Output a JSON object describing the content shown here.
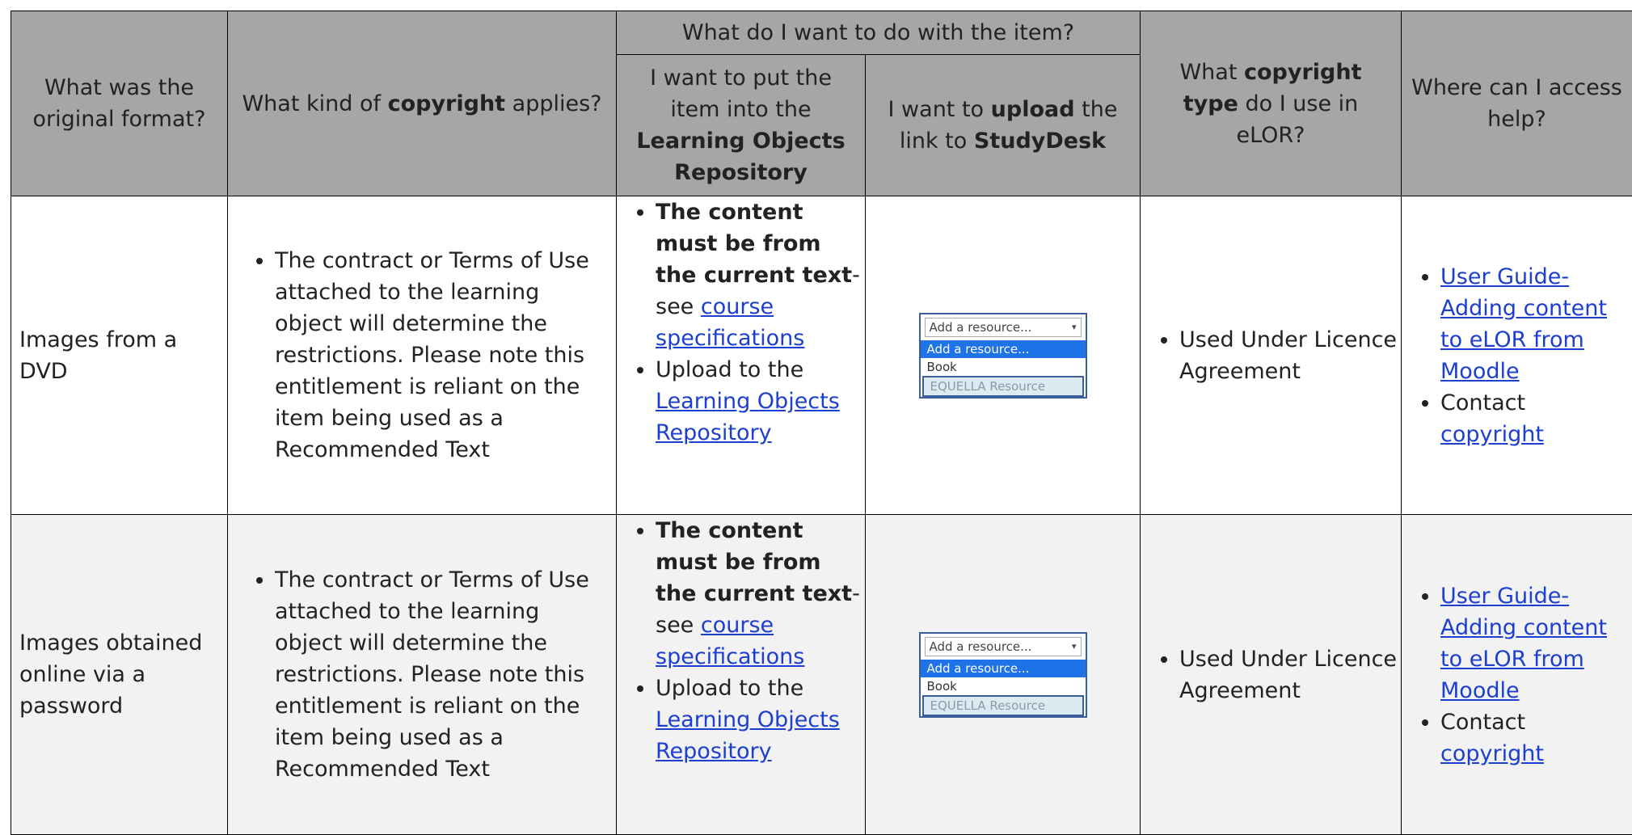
{
  "header": {
    "format": "What was the original format?",
    "copyright": [
      "What kind of ",
      "copyright",
      " applies?"
    ],
    "action": "What do I want to do with the item?",
    "repository": [
      "I want to put the item into the ",
      "Learning Objects Repository"
    ],
    "upload": [
      "I want to ",
      "upload",
      " the link to ",
      "StudyDesk"
    ],
    "type": [
      "What ",
      "copyright type",
      " do I use in eLOR?"
    ],
    "help": "Where can I access help?"
  },
  "rows": [
    {
      "format": "Images from a DVD",
      "copyright": "The contract or Terms of Use attached to the learning object will determine the restrictions. Please note this entitlement is reliant on the item being used as a Recommended Text",
      "repository": [
        [
          "The content must be from the current text",
          "- see ",
          "course specifications"
        ],
        [
          "Upload to the ",
          "Learning Objects Repository"
        ]
      ],
      "dropdown": {
        "select": "Add a resource...",
        "options": [
          "Add a resource...",
          "Book",
          "EQUELLA Resource"
        ]
      },
      "type": "Used Under Licence Agreement",
      "help": [
        [
          "User Guide- Adding content to eLOR from Moodle"
        ],
        [
          "Contact ",
          "copyright"
        ]
      ]
    },
    {
      "format": "Images obtained online via a password",
      "copyright": "The contract or Terms of Use attached to the learning object will determine the restrictions. Please note this entitlement is reliant on the item being used as a Recommended Text",
      "repository": [
        [
          "The content must be from the current text",
          "- see ",
          "course specifications"
        ],
        [
          "Upload to the ",
          "Learning Objects Repository"
        ]
      ],
      "dropdown": {
        "select": "Add a resource...",
        "options": [
          "Add a resource...",
          "Book",
          "EQUELLA Resource"
        ]
      },
      "type": "Used Under Licence Agreement",
      "help": [
        [
          "User Guide- Adding content to eLOR from Moodle"
        ],
        [
          "Contact ",
          "copyright"
        ]
      ]
    }
  ]
}
